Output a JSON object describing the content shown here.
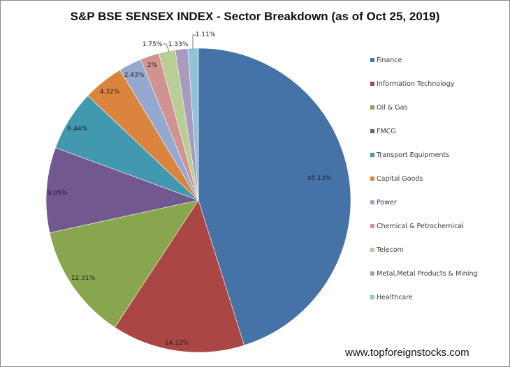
{
  "chart_data": {
    "type": "pie",
    "title": "S&P BSE SENSEX INDEX - Sector Breakdown (as of Oct 25, 2019)",
    "categories": [
      "Finance",
      "Information Technology",
      "Oil & Gas",
      "FMCG",
      "Transport Equipments",
      "Capital Goods",
      "Power",
      "Chemical & Petrochemical",
      "Telecom",
      "Metal,Metal Products & Mining",
      "Healthcare"
    ],
    "values": [
      45.13,
      14.12,
      12.31,
      9.05,
      6.44,
      4.32,
      2.43,
      2.0,
      1.75,
      1.33,
      1.11
    ],
    "labels": [
      "45.13%",
      "14.12%",
      "12.31%",
      "9.05%",
      "6.44%",
      "4.32%",
      "2.43%",
      "2%",
      "1.75%",
      "1.33%",
      "1.11%"
    ],
    "colors": [
      "#4572a7",
      "#aa4643",
      "#89a54e",
      "#71588f",
      "#4198af",
      "#db843d",
      "#93a9cf",
      "#d19392",
      "#b9cd96",
      "#a99bbd",
      "#92c3d4"
    ],
    "legend_position": "right",
    "start_angle": "12 o'clock, clockwise"
  },
  "title": "S&P BSE SENSEX INDEX - Sector Breakdown (as of Oct 25, 2019)",
  "legend": {
    "items": [
      {
        "label": "Finance"
      },
      {
        "label": "Information Technology"
      },
      {
        "label": "Oil & Gas"
      },
      {
        "label": "FMCG"
      },
      {
        "label": "Transport Equipments"
      },
      {
        "label": "Capital Goods"
      },
      {
        "label": "Power"
      },
      {
        "label": "Chemical & Petrochemical"
      },
      {
        "label": "Telecom"
      },
      {
        "label": "Metal,Metal Products & Mining"
      },
      {
        "label": "Healthcare"
      }
    ]
  },
  "watermark": "www.topforeignstocks.com"
}
